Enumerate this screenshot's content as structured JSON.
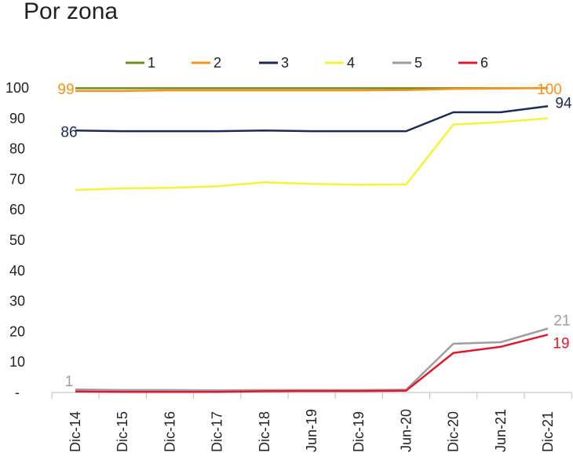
{
  "chart_data": {
    "type": "line",
    "title": "Por zona",
    "xlabel": "",
    "ylabel": "",
    "categories": [
      "Dic-14",
      "Dic-15",
      "Dic-16",
      "Dic-17",
      "Dic-18",
      "Jun-19",
      "Dic-19",
      "Jun-20",
      "Dic-20",
      "Jun-21",
      "Dic-21"
    ],
    "ylim": [
      0,
      100
    ],
    "yticks": [
      {
        "value": 0,
        "label": "-"
      },
      {
        "value": 10,
        "label": "10"
      },
      {
        "value": 20,
        "label": "20"
      },
      {
        "value": 30,
        "label": "30"
      },
      {
        "value": 40,
        "label": "40"
      },
      {
        "value": 50,
        "label": "50"
      },
      {
        "value": 60,
        "label": "60"
      },
      {
        "value": 70,
        "label": "70"
      },
      {
        "value": 80,
        "label": "80"
      },
      {
        "value": 90,
        "label": "90"
      },
      {
        "value": 100,
        "label": "100"
      }
    ],
    "legend_position": "top",
    "series": [
      {
        "name": "1",
        "color": "#6b8e23",
        "values": [
          99.9,
          99.9,
          99.9,
          99.9,
          99.9,
          99.9,
          99.9,
          99.9,
          99.9,
          99.9,
          99.9
        ]
      },
      {
        "name": "2",
        "color": "#f7941d",
        "values": [
          99,
          99,
          99.2,
          99.2,
          99.2,
          99.2,
          99.2,
          99.3,
          99.7,
          99.8,
          100
        ]
      },
      {
        "name": "3",
        "color": "#1b2a57",
        "values": [
          86,
          85.8,
          85.8,
          85.8,
          86,
          85.8,
          85.8,
          85.8,
          92,
          92,
          94
        ]
      },
      {
        "name": "4",
        "color": "#f5f23a",
        "values": [
          66.5,
          67,
          67.2,
          67.7,
          69,
          68.5,
          68.2,
          68.3,
          88,
          88.8,
          90
        ]
      },
      {
        "name": "5",
        "color": "#9e9e9e",
        "values": [
          1,
          0.8,
          0.8,
          0.7,
          0.8,
          0.8,
          0.8,
          0.9,
          16,
          16.5,
          21
        ]
      },
      {
        "name": "6",
        "color": "#e0182d",
        "values": [
          0.3,
          0.2,
          0.2,
          0.2,
          0.4,
          0.5,
          0.5,
          0.6,
          13,
          15,
          19
        ]
      }
    ],
    "annotations": [
      {
        "series": "2",
        "text": "99",
        "at": "start"
      },
      {
        "series": "2",
        "text": "100",
        "at": "end"
      },
      {
        "series": "3",
        "text": "86",
        "at": "start"
      },
      {
        "series": "3",
        "text": "94",
        "at": "end"
      },
      {
        "series": "5",
        "text": "1",
        "at": "start"
      },
      {
        "series": "5",
        "text": "21",
        "at": "end"
      },
      {
        "series": "6",
        "text": "19",
        "at": "end"
      }
    ]
  }
}
